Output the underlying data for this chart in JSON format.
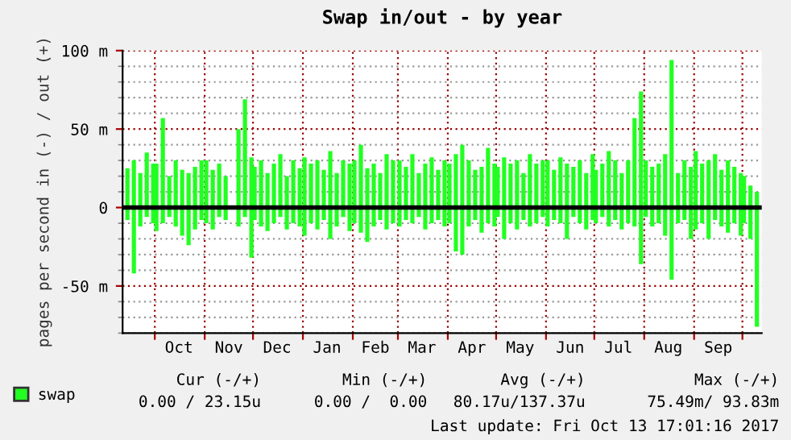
{
  "chart_data": {
    "type": "bar",
    "title": "Swap in/out - by year",
    "ylabel": "pages per second in (-) / out (+)",
    "x": [
      "2016-09-14",
      "2016-09-18",
      "2016-09-22",
      "2016-09-26",
      "2016-09-30",
      "2016-10-02",
      "2016-10-06",
      "2016-10-10",
      "2016-10-14",
      "2016-10-18",
      "2016-10-22",
      "2016-10-26",
      "2016-10-30",
      "2016-11-02",
      "2016-11-06",
      "2016-11-10",
      "2016-11-14",
      "2016-11-18",
      "2016-11-22",
      "2016-11-26",
      "2016-11-30",
      "2016-12-02",
      "2016-12-06",
      "2016-12-10",
      "2016-12-14",
      "2016-12-18",
      "2016-12-22",
      "2016-12-26",
      "2016-12-30",
      "2017-01-02",
      "2017-01-06",
      "2017-01-10",
      "2017-01-14",
      "2017-01-18",
      "2017-01-22",
      "2017-01-26",
      "2017-01-30",
      "2017-02-02",
      "2017-02-06",
      "2017-02-10",
      "2017-02-14",
      "2017-02-18",
      "2017-02-22",
      "2017-02-26",
      "2017-03-02",
      "2017-03-06",
      "2017-03-10",
      "2017-03-14",
      "2017-03-18",
      "2017-03-22",
      "2017-03-26",
      "2017-03-30",
      "2017-04-02",
      "2017-04-06",
      "2017-04-10",
      "2017-04-14",
      "2017-04-18",
      "2017-04-22",
      "2017-04-26",
      "2017-04-30",
      "2017-05-02",
      "2017-05-06",
      "2017-05-10",
      "2017-05-14",
      "2017-05-18",
      "2017-05-22",
      "2017-05-26",
      "2017-05-30",
      "2017-06-02",
      "2017-06-06",
      "2017-06-10",
      "2017-06-14",
      "2017-06-18",
      "2017-06-22",
      "2017-06-26",
      "2017-06-30",
      "2017-07-02",
      "2017-07-06",
      "2017-07-10",
      "2017-07-14",
      "2017-07-18",
      "2017-07-22",
      "2017-07-26",
      "2017-07-30",
      "2017-08-02",
      "2017-08-06",
      "2017-08-10",
      "2017-08-14",
      "2017-08-18",
      "2017-08-22",
      "2017-08-26",
      "2017-08-30",
      "2017-09-02",
      "2017-09-06",
      "2017-09-10",
      "2017-09-14",
      "2017-09-18",
      "2017-09-22",
      "2017-09-26",
      "2017-09-30",
      "2017-10-02",
      "2017-10-06",
      "2017-10-10"
    ],
    "series": [
      {
        "name": "swap",
        "color": "#22ff22",
        "values": [
          25,
          30,
          22,
          35,
          28,
          28,
          57,
          20,
          30,
          24,
          22,
          26,
          30,
          30,
          24,
          28,
          20,
          0,
          50,
          69,
          32,
          26,
          30,
          22,
          28,
          34,
          20,
          30,
          25,
          32,
          28,
          30,
          24,
          36,
          22,
          30,
          28,
          30,
          40,
          25,
          28,
          22,
          34,
          30,
          30,
          26,
          34,
          22,
          28,
          32,
          24,
          30,
          28,
          34,
          40,
          30,
          24,
          26,
          38,
          28,
          26,
          32,
          28,
          30,
          22,
          34,
          28,
          30,
          30,
          24,
          32,
          28,
          26,
          30,
          22,
          34,
          24,
          28,
          36,
          30,
          22,
          30,
          57,
          74,
          30,
          26,
          28,
          34,
          94,
          22,
          30,
          26,
          36,
          28,
          30,
          34,
          24,
          30,
          26,
          22,
          20,
          14,
          10
        ]
      },
      {
        "color": "#22ff22",
        "values": [
          -8,
          -42,
          -12,
          -6,
          -10,
          -15,
          -10,
          -6,
          -12,
          -18,
          -24,
          -14,
          -8,
          -10,
          -14,
          -6,
          -8,
          0,
          -12,
          -6,
          -32,
          -8,
          -12,
          -15,
          -10,
          -6,
          -14,
          -10,
          -12,
          -18,
          -10,
          -14,
          -8,
          -20,
          -12,
          -6,
          -15,
          -10,
          -16,
          -22,
          -12,
          -8,
          -14,
          -10,
          -12,
          -8,
          -10,
          -6,
          -14,
          -10,
          -8,
          -12,
          -10,
          -28,
          -30,
          -12,
          -8,
          -16,
          -10,
          -12,
          -6,
          -20,
          -10,
          -14,
          -8,
          -12,
          -10,
          -6,
          -12,
          -8,
          -10,
          -20,
          -6,
          -10,
          -14,
          -8,
          -10,
          -6,
          -12,
          -8,
          -14,
          -10,
          -12,
          -36,
          -6,
          -12,
          -10,
          -18,
          -46,
          -10,
          -8,
          -20,
          -14,
          -10,
          -20,
          -8,
          -12,
          -16,
          -10,
          -18,
          -10,
          -20,
          -76
        ]
      }
    ],
    "xlim": [
      "2016-09-11",
      "2017-10-13"
    ],
    "xticks": [
      {
        "value": "2016-10-01",
        "label": null
      },
      {
        "value": "2016-10-16",
        "label": "Oct"
      },
      {
        "value": "2016-11-01",
        "label": null
      },
      {
        "value": "2016-11-16",
        "label": "Nov"
      },
      {
        "value": "2016-12-01",
        "label": null
      },
      {
        "value": "2016-12-16",
        "label": "Dec"
      },
      {
        "value": "2017-01-01",
        "label": null
      },
      {
        "value": "2017-01-16",
        "label": "Jan"
      },
      {
        "value": "2017-02-01",
        "label": null
      },
      {
        "value": "2017-02-15",
        "label": "Feb"
      },
      {
        "value": "2017-03-01",
        "label": null
      },
      {
        "value": "2017-03-16",
        "label": "Mar"
      },
      {
        "value": "2017-04-01",
        "label": null
      },
      {
        "value": "2017-04-16",
        "label": "Apr"
      },
      {
        "value": "2017-05-01",
        "label": null
      },
      {
        "value": "2017-05-16",
        "label": "May"
      },
      {
        "value": "2017-06-01",
        "label": null
      },
      {
        "value": "2017-06-16",
        "label": "Jun"
      },
      {
        "value": "2017-07-01",
        "label": null
      },
      {
        "value": "2017-07-16",
        "label": "Jul"
      },
      {
        "value": "2017-08-01",
        "label": null
      },
      {
        "value": "2017-08-16",
        "label": "Aug"
      },
      {
        "value": "2017-09-01",
        "label": null
      },
      {
        "value": "2017-09-16",
        "label": "Sep"
      },
      {
        "value": "2017-10-01",
        "label": null
      }
    ],
    "ylim": [
      -80,
      100
    ],
    "yticks": [
      {
        "value": -80,
        "label": null
      },
      {
        "value": -70,
        "label": null
      },
      {
        "value": -60,
        "label": null
      },
      {
        "value": -50,
        "label": "-50 m"
      },
      {
        "value": -40,
        "label": null
      },
      {
        "value": -30,
        "label": null
      },
      {
        "value": -20,
        "label": null
      },
      {
        "value": -10,
        "label": null
      },
      0,
      {
        "value": 10,
        "label": null
      },
      {
        "value": 20,
        "label": null
      },
      {
        "value": 30,
        "label": null
      },
      {
        "value": 40,
        "label": null
      },
      {
        "value": 50,
        "label": "50 m"
      },
      {
        "value": 60,
        "label": null
      },
      {
        "value": 70,
        "label": null
      },
      {
        "value": 80,
        "label": null
      },
      {
        "value": 90,
        "label": null
      },
      {
        "value": 100,
        "label": "100 m"
      }
    ],
    "ref_lines": [
      {
        "axis": "y",
        "value": 0,
        "color": "#000000"
      }
    ],
    "stacked": true,
    "grid": true,
    "legend": "bottom left",
    "annotations": [
      "Cur (-/+)",
      "Min (-/+)",
      "Avg (-/+)",
      "Max (-/+)",
      "0.00 / 23.15u",
      "0.00 /  0.00",
      "80.17u/137.37u",
      "75.49m/ 93.83m",
      "Last update: Fri Oct 13 17:01:16 2017"
    ]
  }
}
